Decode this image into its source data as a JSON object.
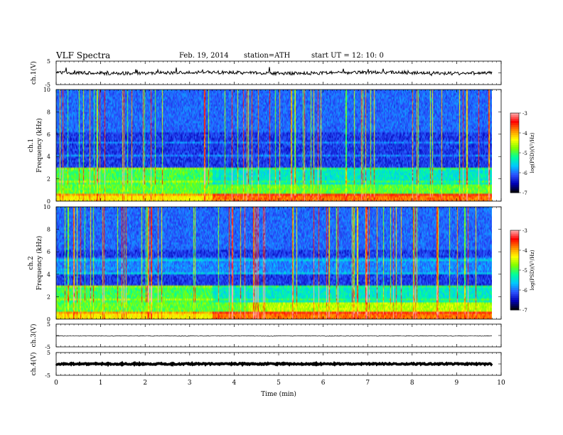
{
  "header": {
    "title": "VLF  Spectra",
    "date": "Feb. 19, 2014",
    "station": "station=ATH",
    "start_ut": "start  UT  =    12: 10: 0"
  },
  "chart_data": [
    {
      "type": "line",
      "panel": "ch1-waveform",
      "ylabel": "ch.1(V)",
      "ylim": [
        -5,
        5
      ],
      "yticks": [
        "5",
        "-5"
      ],
      "series": [
        {
          "values_note_excluded": true,
          "approx_level": 0.0
        }
      ]
    },
    {
      "type": "heatmap",
      "panel": "ch1-spectrogram",
      "ylabel_line1": "ch.1",
      "ylabel_line2": "Frequency  (kHz)",
      "ylim": [
        0,
        10
      ],
      "yticks": [
        "0",
        "2",
        "4",
        "6",
        "8",
        "10"
      ],
      "colorbar": {
        "label": "log(PSD)(V²/Hz)",
        "ticks": [
          "-3",
          "-4",
          "-5",
          "-6",
          "-7"
        ],
        "range": [
          -7,
          -3
        ]
      }
    },
    {
      "type": "heatmap",
      "panel": "ch2-spectrogram",
      "ylabel_line1": "ch.2",
      "ylabel_line2": "Frequency  (kHz)",
      "ylim": [
        0,
        10
      ],
      "yticks": [
        "0",
        "2",
        "4",
        "6",
        "8",
        "10"
      ],
      "colorbar": {
        "label": "log(PSD)(V²/Hz)",
        "ticks": [
          "-3",
          "-4",
          "-5",
          "-6",
          "-7"
        ],
        "range": [
          -7,
          -3
        ]
      }
    },
    {
      "type": "line",
      "panel": "ch3-waveform",
      "ylabel": "ch.3(V)",
      "ylim": [
        -5,
        5
      ],
      "yticks": [
        "5",
        "-5"
      ],
      "approx_level": -0.2
    },
    {
      "type": "line",
      "panel": "ch4-waveform",
      "ylabel": "ch.4(V)",
      "ylim": [
        -5,
        5
      ],
      "yticks": [
        "5",
        "-5"
      ],
      "approx_level": 0.0
    }
  ],
  "xaxis": {
    "label": "Time  (min)",
    "ticks": [
      "0",
      "1",
      "2",
      "3",
      "4",
      "5",
      "6",
      "7",
      "8",
      "9",
      "10"
    ],
    "range": [
      0,
      10
    ],
    "data_end": 9.8
  },
  "colors": {
    "frame": "#000000",
    "cmap": [
      "#000000",
      "#0000b4",
      "#2c52ff",
      "#00c8ff",
      "#00ff9c",
      "#7dff00",
      "#ffff00",
      "#ff8c00",
      "#ff0000",
      "#ffb0b0"
    ]
  }
}
